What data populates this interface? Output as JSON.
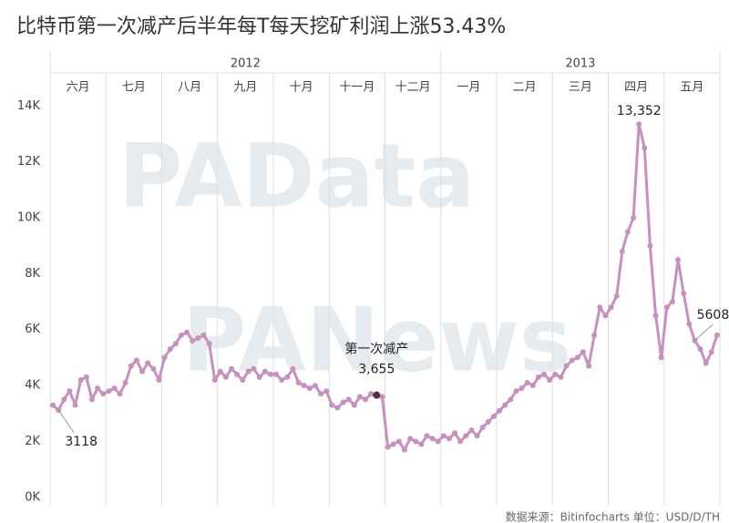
{
  "chart_data": {
    "type": "line",
    "title": "比特币第一次减产后半年每T每天挖矿利润上涨53.43%",
    "source": "数据来源：Bitinfocharts  单位：USD/D/TH",
    "watermarks": [
      "PAData",
      "PANews"
    ],
    "color": "#c790bf",
    "ylim": [
      -300,
      16000
    ],
    "yticks": [
      {
        "value": 0,
        "label": "0K"
      },
      {
        "value": 2000,
        "label": "2K"
      },
      {
        "value": 4000,
        "label": "4K"
      },
      {
        "value": 6000,
        "label": "6K"
      },
      {
        "value": 8000,
        "label": "8K"
      },
      {
        "value": 10000,
        "label": "10K"
      },
      {
        "value": 12000,
        "label": "12K"
      },
      {
        "value": 14000,
        "label": "14K"
      }
    ],
    "years": [
      {
        "label": "2012",
        "months": [
          {
            "name": "六月",
            "values": [
              3300,
              3118,
              3500,
              3800,
              3300,
              4200,
              4300,
              3500,
              3900,
              3700
            ]
          },
          {
            "name": "七月",
            "values": [
              3800,
              3900,
              3700,
              4100,
              4700,
              4900,
              4500,
              4800,
              4600,
              4200
            ]
          },
          {
            "name": "八月",
            "values": [
              5000,
              5300,
              5500,
              5800,
              5900,
              5600,
              5700,
              5800,
              5500,
              4200
            ]
          },
          {
            "name": "九月",
            "values": [
              4500,
              4300,
              4600,
              4400,
              4200,
              4500,
              4600,
              4300,
              4500,
              4400
            ]
          },
          {
            "name": "十月",
            "values": [
              4400,
              4200,
              4300,
              4600,
              4100,
              4000,
              3900,
              4000,
              3700,
              3800
            ]
          },
          {
            "name": "十一月",
            "values": [
              3300,
              3200,
              3400,
              3500,
              3300,
              3600,
              3500,
              3700,
              3655,
              3600
            ]
          },
          {
            "name": "十二月",
            "values": [
              1800,
              1900,
              2000,
              1700,
              2100,
              2000,
              1900,
              2200,
              2100,
              2000
            ]
          }
        ]
      },
      {
        "label": "2013",
        "months": [
          {
            "name": "一月",
            "values": [
              2200,
              2100,
              2300,
              2000,
              2200,
              2400,
              2200,
              2500,
              2700,
              2900
            ]
          },
          {
            "name": "二月",
            "values": [
              3100,
              3300,
              3500,
              3800,
              3900,
              4100,
              4000,
              4300,
              4400,
              4200
            ]
          },
          {
            "name": "三月",
            "values": [
              4400,
              4300,
              4700,
              4900,
              5000,
              5200,
              4700,
              5800,
              6800,
              6500
            ]
          },
          {
            "name": "四月",
            "values": [
              6800,
              7200,
              8800,
              9500,
              10000,
              13352,
              12500,
              9000,
              6500,
              5000
            ]
          },
          {
            "name": "五月",
            "values": [
              6800,
              7000,
              8500,
              7300,
              6200,
              5608,
              5300,
              4800,
              5200,
              5800
            ]
          }
        ]
      }
    ],
    "annotations": [
      {
        "label": "3118",
        "value": 3118
      },
      {
        "title": "第一次减产",
        "label": "3,655",
        "value": 3655
      },
      {
        "label": "13,352",
        "value": 13352
      },
      {
        "label": "5608",
        "value": 5608
      }
    ]
  }
}
